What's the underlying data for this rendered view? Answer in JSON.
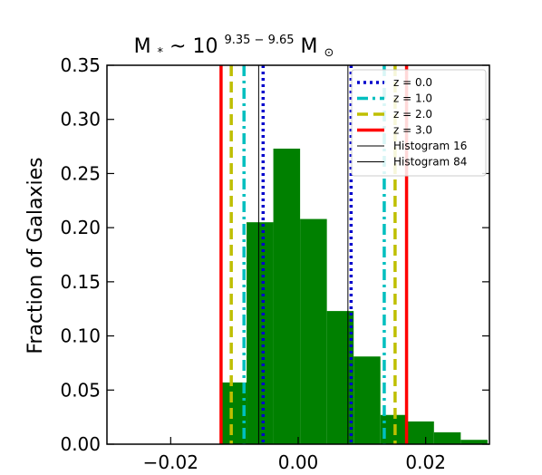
{
  "chart_data": {
    "type": "bar",
    "title_base": "M",
    "title_sub": "*",
    "title_sep": " ~ 10",
    "title_sup": "9.35 − 9.65",
    "title_unit": "M",
    "title_unit_sub": "⊙",
    "ylabel": "Fraction of Galaxies",
    "xlabel": "",
    "xlim": [
      -0.03,
      0.03
    ],
    "ylim": [
      0.0,
      0.35
    ],
    "xticks": [
      -0.02,
      0.0,
      0.02
    ],
    "xtick_labels": [
      "−0.02",
      "0.00",
      "0.02"
    ],
    "yticks": [
      0.0,
      0.05,
      0.1,
      0.15,
      0.2,
      0.25,
      0.3,
      0.35
    ],
    "ytick_labels": [
      "0.00",
      "0.05",
      "0.10",
      "0.15",
      "0.20",
      "0.25",
      "0.30",
      "0.35"
    ],
    "histogram": {
      "color": "#008000",
      "bins": [
        {
          "x0": -0.0123,
          "x1": -0.0081,
          "value": 0.057
        },
        {
          "x0": -0.0081,
          "x1": -0.0039,
          "value": 0.205
        },
        {
          "x0": -0.0039,
          "x1": 0.0003,
          "value": 0.273
        },
        {
          "x0": 0.0003,
          "x1": 0.0045,
          "value": 0.208
        },
        {
          "x0": 0.0045,
          "x1": 0.0087,
          "value": 0.123
        },
        {
          "x0": 0.0087,
          "x1": 0.0129,
          "value": 0.081
        },
        {
          "x0": 0.0129,
          "x1": 0.0171,
          "value": 0.027
        },
        {
          "x0": 0.0171,
          "x1": 0.0213,
          "value": 0.021
        },
        {
          "x0": 0.0213,
          "x1": 0.0255,
          "value": 0.011
        },
        {
          "x0": 0.0255,
          "x1": 0.0297,
          "value": 0.004
        }
      ]
    },
    "series": [
      {
        "name": "z = 0.0",
        "color": "#0000cc",
        "style": "dotted",
        "width": 3.5,
        "x": [
          -0.0055,
          0.0083
        ]
      },
      {
        "name": "z = 1.0",
        "color": "#00bfbf",
        "style": "dashdot",
        "width": 3.5,
        "x": [
          -0.0085,
          0.0135
        ]
      },
      {
        "name": "z = 2.0",
        "color": "#bfbf00",
        "style": "dashed",
        "width": 3.5,
        "x": [
          -0.0105,
          0.0152
        ]
      },
      {
        "name": "z = 3.0",
        "color": "#ff0000",
        "style": "solid",
        "width": 3.5,
        "x": [
          -0.0121,
          0.017
        ]
      },
      {
        "name": "Histogram 16",
        "color": "#000000",
        "style": "solid",
        "width": 1,
        "x": [
          -0.0062
        ]
      },
      {
        "name": "Histogram 84",
        "color": "#000000",
        "style": "solid",
        "width": 1,
        "x": [
          0.0078
        ]
      }
    ],
    "legend": {
      "placement": "top-right"
    }
  }
}
